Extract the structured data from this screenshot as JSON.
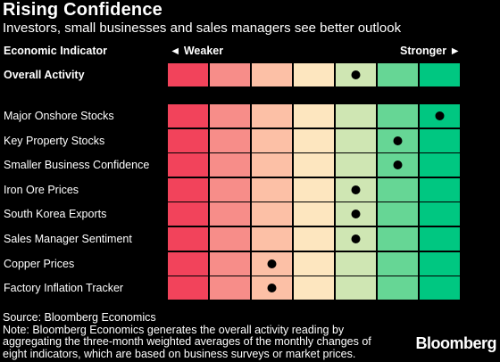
{
  "title": "Rising Confidence",
  "subtitle": "Investors, small businesses and sales managers see better outlook",
  "headers": {
    "indicator": "Economic Indicator",
    "weaker": "◄ Weaker",
    "stronger": "Stronger ►"
  },
  "colors": [
    "#f2435b",
    "#f78d89",
    "#fcc0a6",
    "#fde6bf",
    "#cfe6b3",
    "#66d695",
    "#00c781"
  ],
  "chart_data": {
    "type": "heatmap",
    "scale_levels": 7,
    "rows": [
      {
        "label": "Overall Activity",
        "level": 5,
        "bold": true
      },
      {
        "label": "Major Onshore Stocks",
        "level": 7
      },
      {
        "label": "Key Property Stocks",
        "level": 6
      },
      {
        "label": "Smaller Business Confidence",
        "level": 6
      },
      {
        "label": "Iron Ore Prices",
        "level": 5
      },
      {
        "label": "South Korea Exports",
        "level": 5
      },
      {
        "label": "Sales Manager Sentiment",
        "level": 5
      },
      {
        "label": "Copper Prices",
        "level": 3
      },
      {
        "label": "Factory Inflation Tracker",
        "level": 3
      }
    ]
  },
  "footer": {
    "source": "Source: Bloomberg Economics",
    "note": "Note: Bloomberg Economics generates the overall activity reading by aggregating the three-month weighted averages of the monthly changes of eight indicators, which are based on business surveys or market prices."
  },
  "brand": "Bloomberg"
}
